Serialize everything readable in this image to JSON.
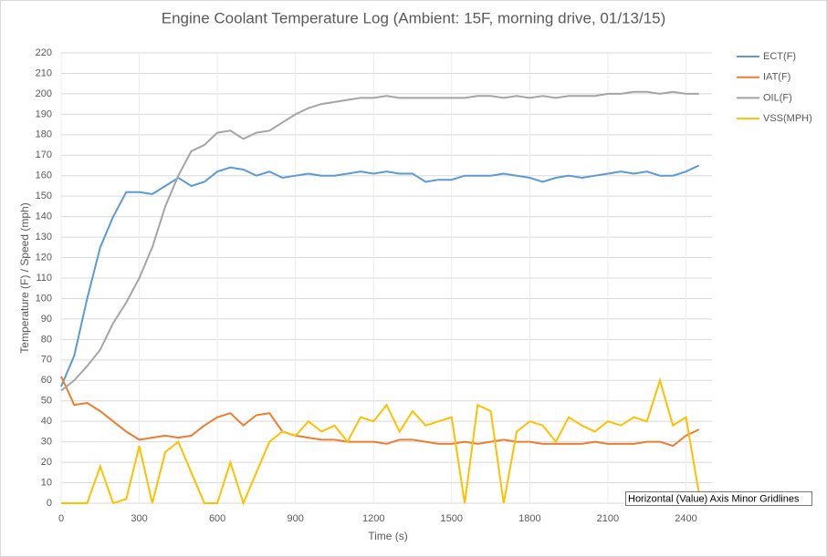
{
  "chart_data": {
    "type": "line",
    "title": "Engine Coolant Temperature Log (Ambient: 15F, morning drive, 01/13/15)",
    "x_label": "Time (s)",
    "y_label": "Temperature (F) / Speed (mph)",
    "tooltip": "Horizontal (Value) Axis Minor Gridlines",
    "x": [
      0,
      50,
      100,
      150,
      200,
      250,
      300,
      350,
      400,
      450,
      500,
      550,
      600,
      650,
      700,
      750,
      800,
      850,
      900,
      950,
      1000,
      1050,
      1100,
      1150,
      1200,
      1250,
      1300,
      1350,
      1400,
      1450,
      1500,
      1550,
      1600,
      1650,
      1700,
      1750,
      1800,
      1850,
      1900,
      1950,
      2000,
      2050,
      2100,
      2150,
      2200,
      2250,
      2300,
      2350,
      2400,
      2450
    ],
    "series": [
      {
        "name": "ECT(F)",
        "color": "#5b9bd5",
        "values": [
          57,
          72,
          100,
          125,
          140,
          152,
          152,
          151,
          155,
          159,
          155,
          157,
          162,
          164,
          163,
          160,
          162,
          159,
          160,
          161,
          160,
          160,
          161,
          162,
          161,
          162,
          161,
          161,
          157,
          158,
          158,
          160,
          160,
          160,
          161,
          160,
          159,
          157,
          159,
          160,
          159,
          160,
          161,
          162,
          161,
          162,
          160,
          160,
          162,
          165
        ]
      },
      {
        "name": "IAT(F)",
        "color": "#ed7d31",
        "values": [
          62,
          48,
          49,
          45,
          40,
          35,
          31,
          32,
          33,
          32,
          33,
          38,
          42,
          44,
          38,
          43,
          44,
          35,
          33,
          32,
          31,
          31,
          30,
          30,
          30,
          29,
          31,
          31,
          30,
          29,
          29,
          30,
          29,
          30,
          31,
          30,
          30,
          29,
          29,
          29,
          29,
          30,
          29,
          29,
          29,
          30,
          30,
          28,
          33,
          36
        ]
      },
      {
        "name": "OIL(F)",
        "color": "#a5a5a5",
        "values": [
          55,
          60,
          67,
          75,
          88,
          98,
          110,
          125,
          145,
          160,
          172,
          175,
          181,
          182,
          178,
          181,
          182,
          186,
          190,
          193,
          195,
          196,
          197,
          198,
          198,
          199,
          198,
          198,
          198,
          198,
          198,
          198,
          199,
          199,
          198,
          199,
          198,
          199,
          198,
          199,
          199,
          199,
          200,
          200,
          201,
          201,
          200,
          201,
          200,
          200
        ]
      },
      {
        "name": "VSS(MPH)",
        "color": "#ffc000",
        "values": [
          0,
          0,
          0,
          18,
          0,
          2,
          28,
          0,
          25,
          30,
          15,
          0,
          0,
          20,
          0,
          15,
          30,
          35,
          33,
          40,
          35,
          38,
          30,
          42,
          40,
          48,
          35,
          45,
          38,
          40,
          42,
          0,
          48,
          45,
          0,
          35,
          40,
          38,
          30,
          42,
          38,
          35,
          40,
          38,
          42,
          40,
          60,
          38,
          42,
          5
        ]
      }
    ],
    "xlim": [
      0,
      2500
    ],
    "xticks": [
      0,
      300,
      600,
      900,
      1200,
      1500,
      1800,
      2100,
      2400
    ],
    "ylim": [
      0,
      220
    ],
    "yticks": [
      0,
      10,
      20,
      30,
      40,
      50,
      60,
      70,
      80,
      90,
      100,
      110,
      120,
      130,
      140,
      150,
      160,
      170,
      180,
      190,
      200,
      210,
      220
    ],
    "grid": true,
    "legend": "right"
  }
}
